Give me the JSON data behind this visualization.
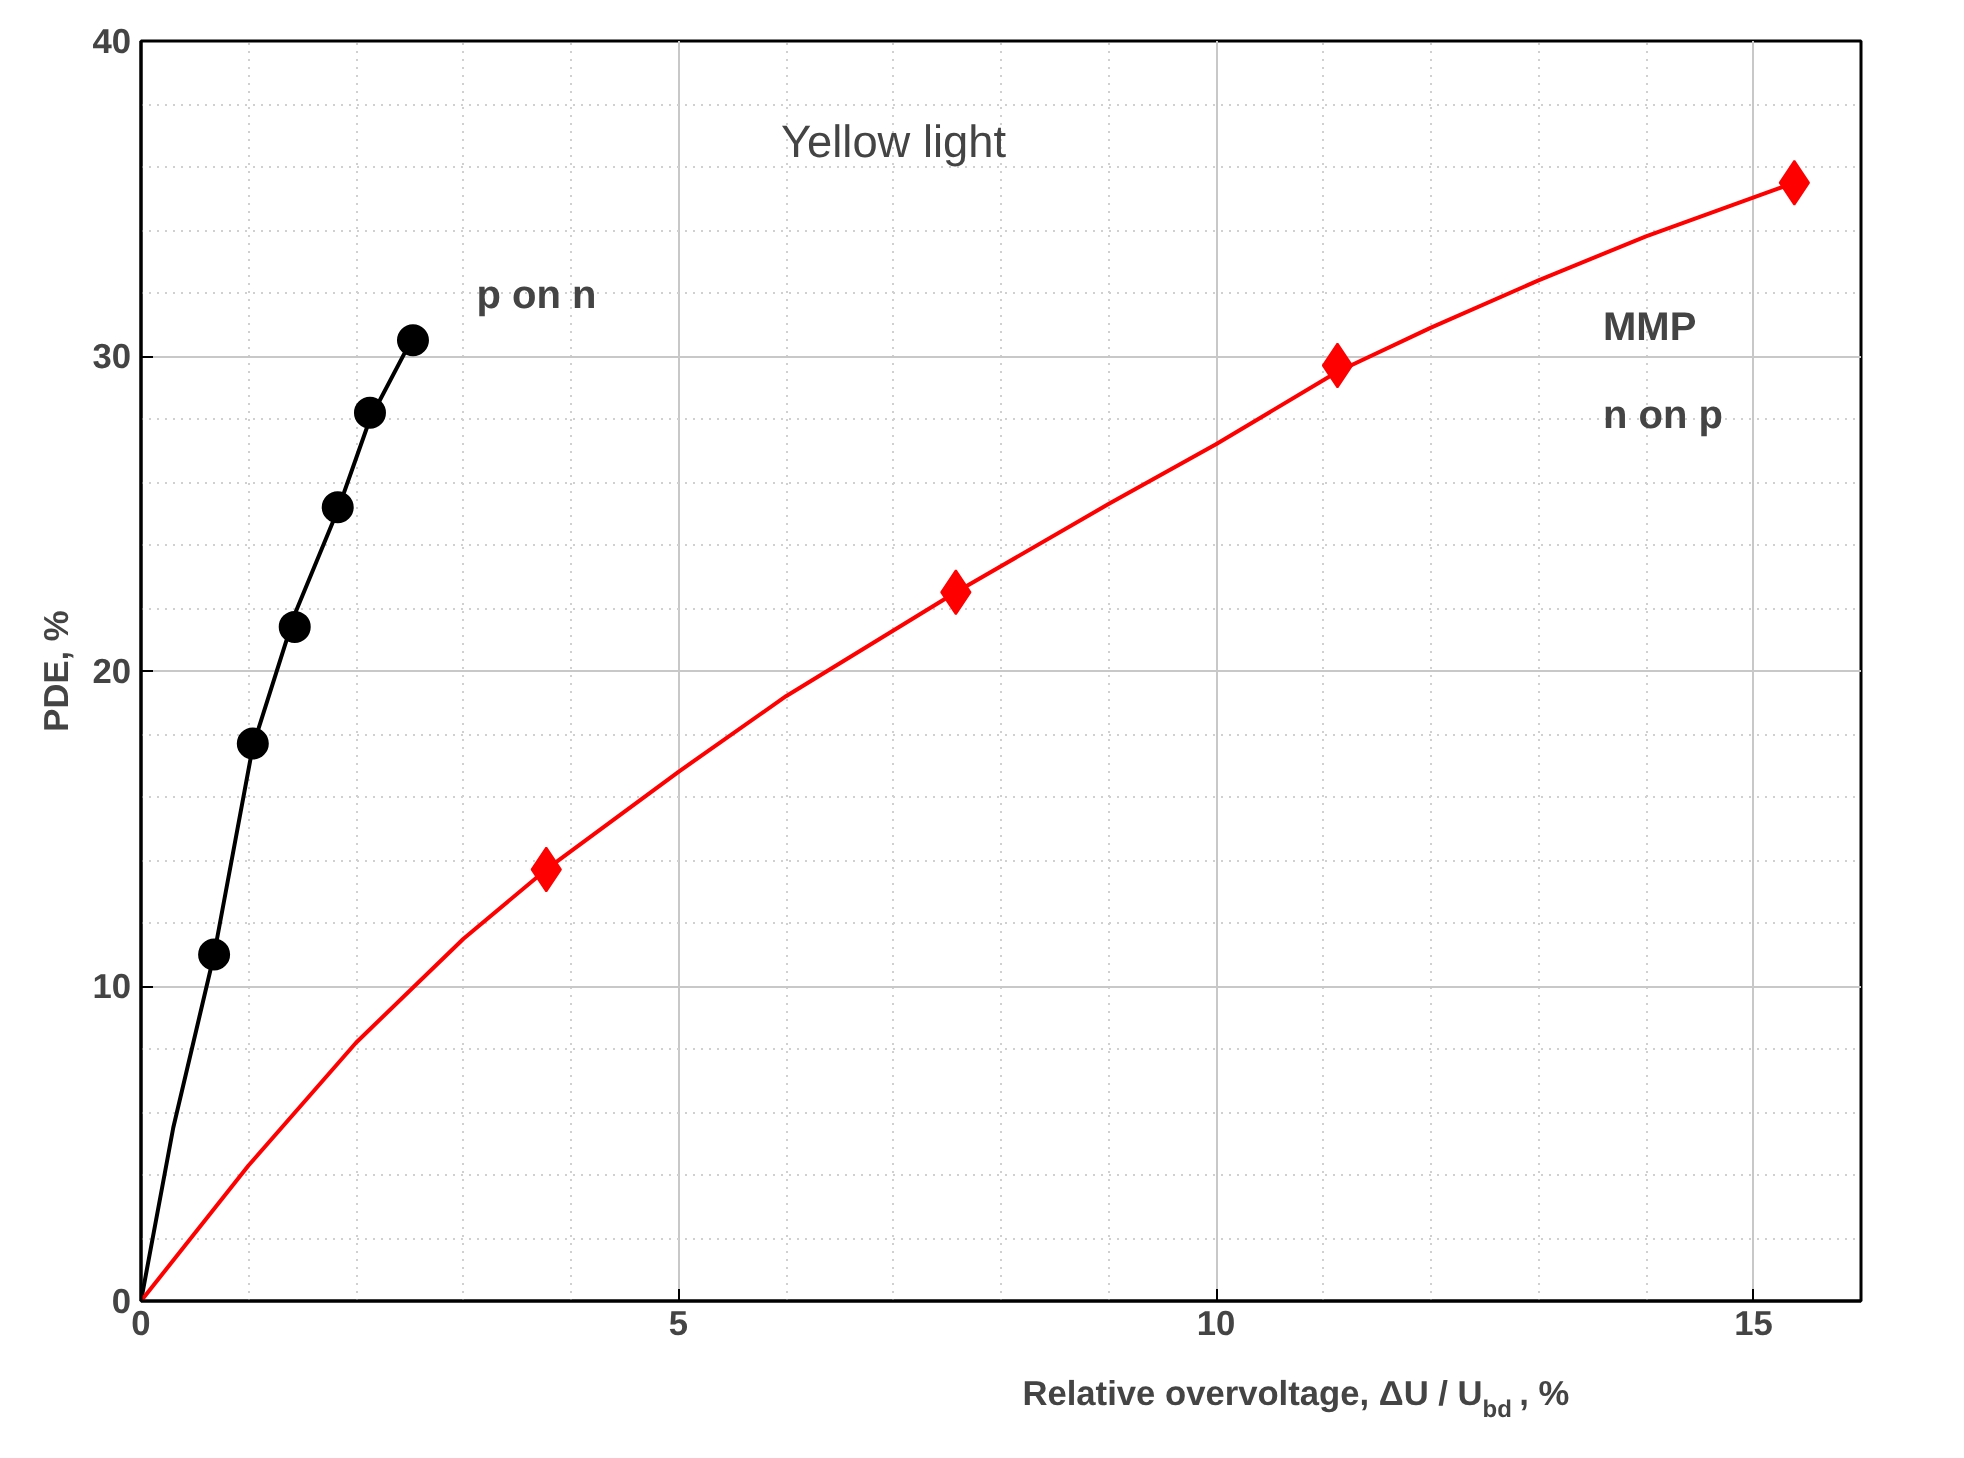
{
  "chart_data": {
    "type": "scatter",
    "title": "Yellow light",
    "xlabel": "Relative overvoltage, ΔU / U$_{bd}$ , %",
    "ylabel": "PDE, %",
    "xlim": [
      0,
      16
    ],
    "ylim": [
      0,
      40
    ],
    "xticks": [
      0,
      5,
      10,
      15
    ],
    "yticks": [
      0,
      10,
      20,
      30,
      40
    ],
    "grid": true,
    "series": [
      {
        "marker": "circle",
        "color": "#000000",
        "x": [
          0.68,
          1.04,
          1.43,
          1.83,
          2.13,
          2.53
        ],
        "values": [
          11.0,
          17.7,
          21.4,
          25.2,
          28.2,
          30.5
        ]
      },
      {
        "type": "line",
        "color": "#000000",
        "x": [
          0,
          0.3,
          0.68,
          1.04,
          1.43,
          1.83,
          2.13,
          2.53
        ],
        "values": [
          0,
          5.5,
          11.0,
          17.6,
          21.8,
          25.1,
          28.0,
          30.6
        ]
      },
      {
        "marker": "diamond",
        "color": "#ff0000",
        "x": [
          3.77,
          7.58,
          11.13,
          15.38
        ],
        "values": [
          13.7,
          22.5,
          29.7,
          35.5
        ]
      },
      {
        "type": "line",
        "color": "#ff0000",
        "x": [
          0,
          1,
          2,
          3,
          3.77,
          5,
          6,
          7.58,
          9,
          10,
          11.13,
          12,
          13,
          14,
          15.38
        ],
        "values": [
          0,
          4.3,
          8.2,
          11.5,
          13.7,
          16.8,
          19.2,
          22.5,
          25.3,
          27.2,
          29.5,
          30.9,
          32.4,
          33.8,
          35.5
        ]
      }
    ],
    "annotations": [
      "p on n",
      "MMP",
      "n on p"
    ]
  }
}
